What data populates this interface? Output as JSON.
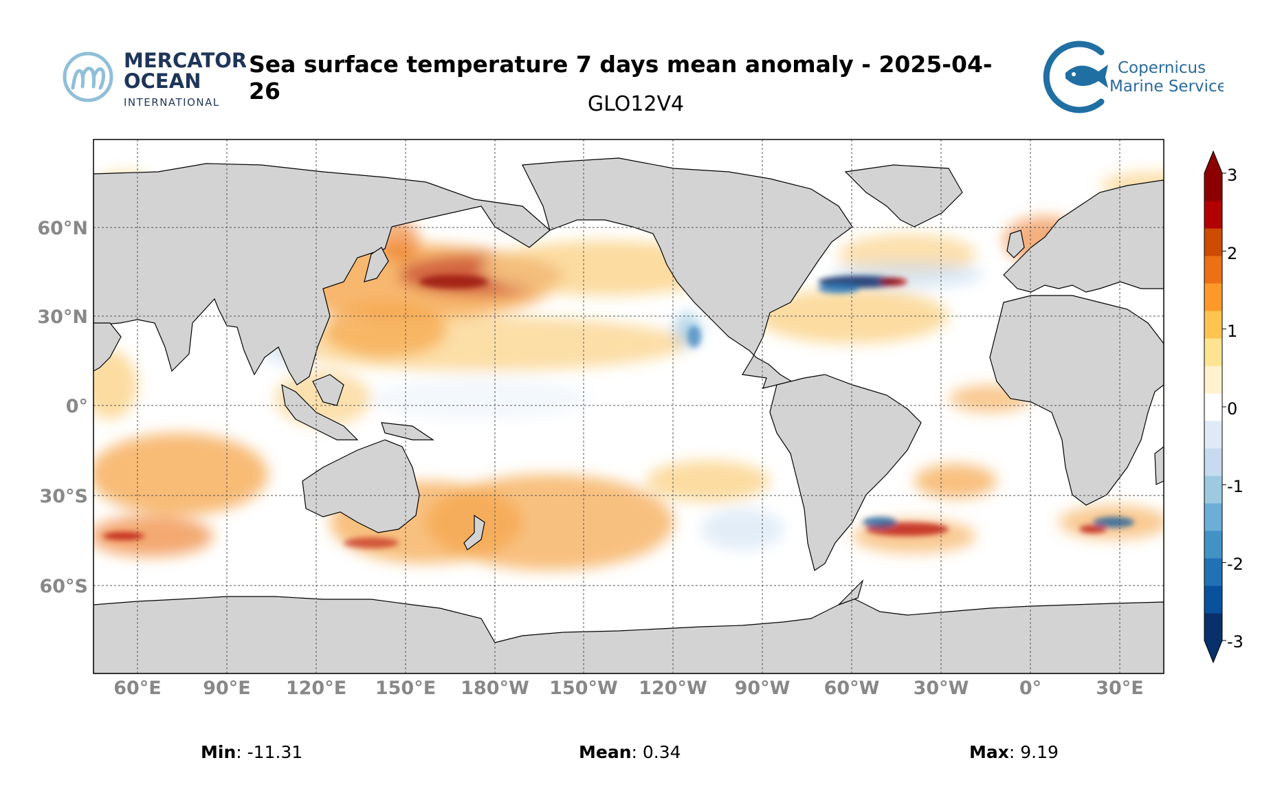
{
  "header": {
    "title": "Sea surface temperature 7 days mean anomaly - 2025-04-26",
    "subtitle": "GLO12V4"
  },
  "logos": {
    "left": {
      "line1": "MERCATOR",
      "line2": "OCEAN",
      "line3": "INTERNATIONAL"
    },
    "right": {
      "line1": "Copernicus",
      "line2": "Marine Service"
    }
  },
  "map": {
    "lon_labels": [
      "60°E",
      "90°E",
      "120°E",
      "150°E",
      "180°W",
      "150°W",
      "120°W",
      "90°W",
      "60°W",
      "30°W",
      "0°",
      "30°E"
    ],
    "lat_labels": [
      "60°N",
      "30°N",
      "0°",
      "30°S",
      "60°S"
    ],
    "land_color": "#d3d3d3",
    "ocean_base_color": "#ffffff"
  },
  "colorbar": {
    "ticks": [
      "3",
      "2",
      "1",
      "0",
      "-1",
      "-2",
      "-3"
    ],
    "range": [
      -3,
      3
    ],
    "colors": [
      "#08306b",
      "#08519c",
      "#2171b5",
      "#4292c6",
      "#6baed6",
      "#9ecae1",
      "#c6dbef",
      "#deebf7",
      "#ffffff",
      "#fff2cc",
      "#fee391",
      "#fec44f",
      "#fe9929",
      "#ec7014",
      "#cc4c02",
      "#b30000",
      "#8b0000"
    ]
  },
  "stats": {
    "min_label": "Min",
    "min_value": ": -11.31",
    "mean_label": "Mean",
    "mean_value": ": 0.34",
    "max_label": "Max",
    "max_value": ": 9.19"
  }
}
